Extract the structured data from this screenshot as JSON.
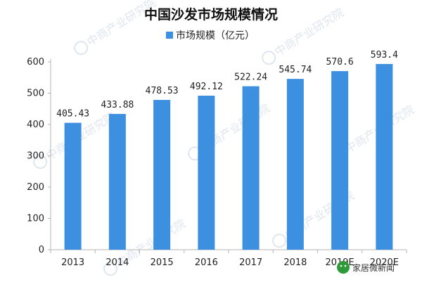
{
  "chart_data": {
    "type": "bar",
    "title": "中国沙发市场规模情况",
    "categories": [
      "2013",
      "2014",
      "2015",
      "2016",
      "2017",
      "2018",
      "2019E",
      "2020E"
    ],
    "series": [
      {
        "name": "市场规模（亿元）",
        "values": [
          405.43,
          433.88,
          478.53,
          492.12,
          522.24,
          545.74,
          570.6,
          593.4
        ],
        "labels": [
          "405.43",
          "433.88",
          "478.53",
          "492.12",
          "522.24",
          "545.74",
          "570.6",
          "593.4"
        ]
      }
    ],
    "ylim": [
      0,
      600
    ],
    "yticks": [
      0,
      100,
      200,
      300,
      400,
      500,
      600
    ],
    "grid": false,
    "legend": "top-center",
    "bar_color": "#3d8fe0"
  },
  "watermark": {
    "text": "中商产业研究院"
  },
  "footer": {
    "text": "家居微新闻"
  }
}
